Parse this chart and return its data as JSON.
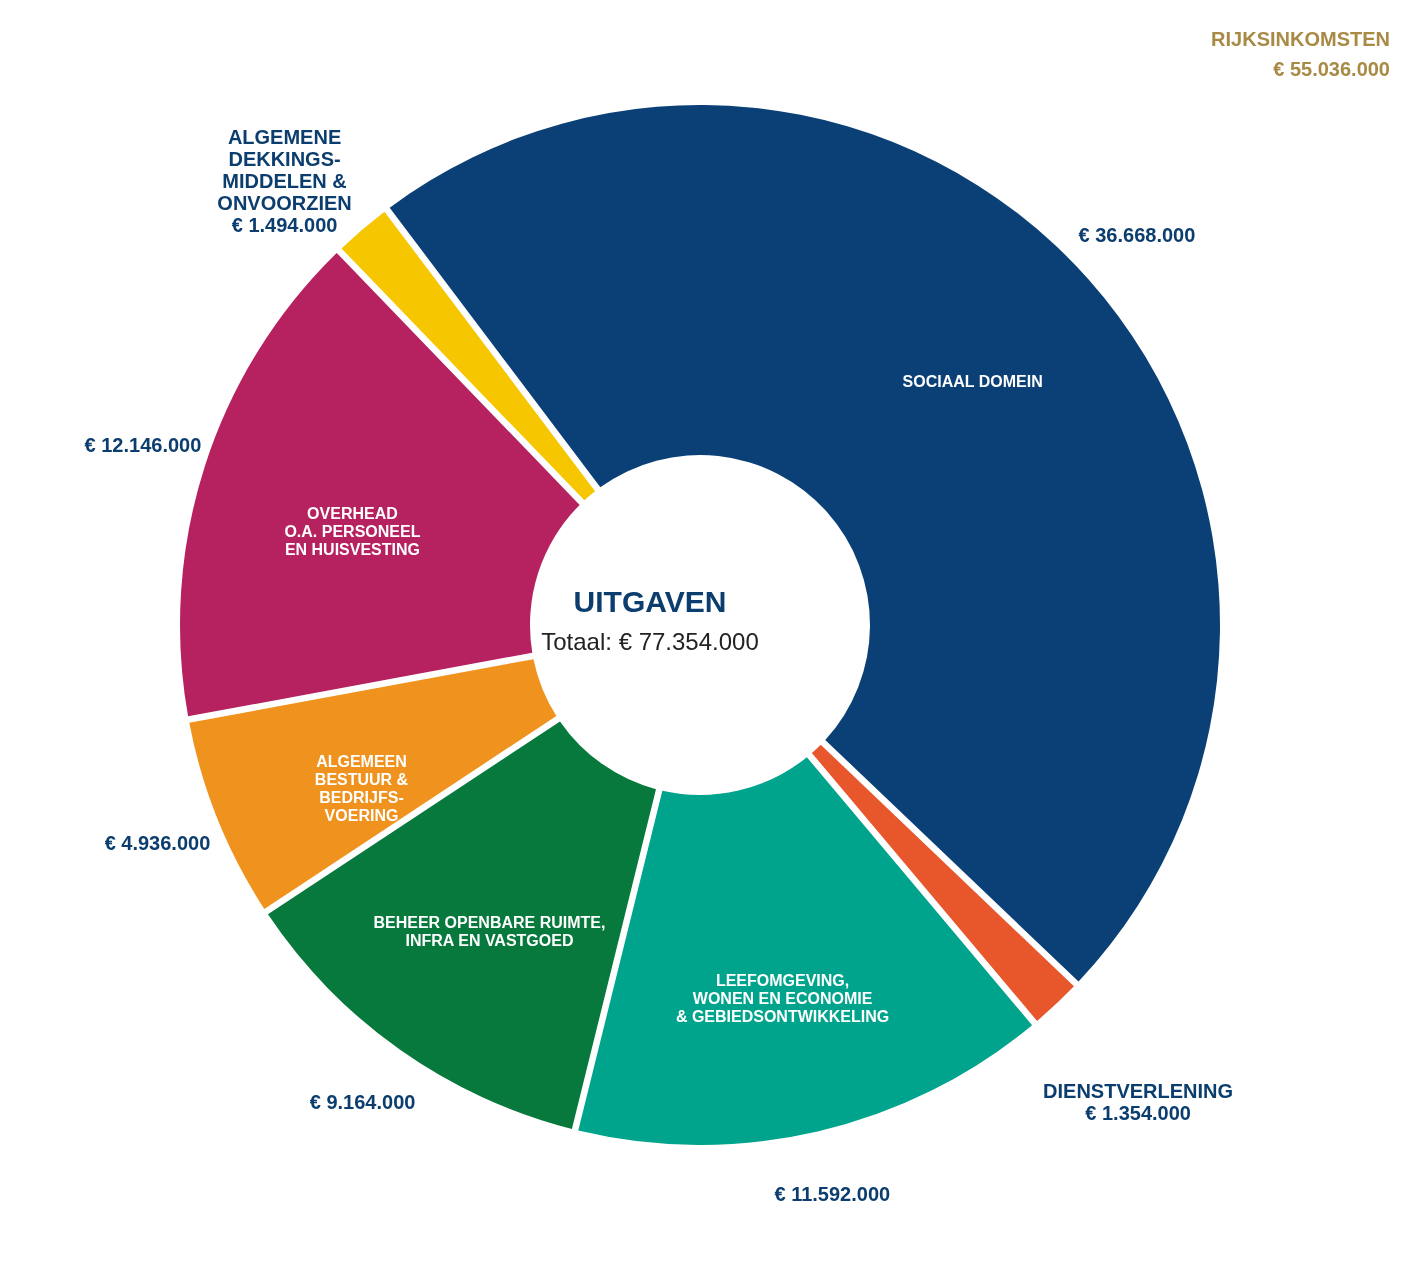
{
  "chart_data": {
    "type": "donut",
    "title": "UITGAVEN",
    "subtitle": "Totaal:  € 77.354.000",
    "categories": [
      "SOCIAAL DOMEIN",
      "DIENSTVERLENING",
      "LEEFOMGEVING,\nWONEN EN ECONOMIE\n& GEBIEDSONTWIKKELING",
      "BEHEER OPENBARE RUIMTE,\nINFRA EN VASTGOED",
      "ALGEMEEN\nBESTUUR &\nBEDRIJFS-\nVOERING",
      "OVERHEAD\nO.A. PERSONEEL\nEN HUISVESTING",
      "ALGEMENE\nDEKKINGS-\nMIDDELEN &\nONVOORZIEN"
    ],
    "values": [
      36668000,
      1354000,
      11592000,
      9164000,
      4936000,
      12146000,
      1494000
    ],
    "value_labels": [
      "€ 36.668.000",
      "€ 1.354.000",
      "€ 11.592.000",
      "€ 9.164.000",
      "€ 4.936.000",
      "€ 12.146.000",
      "€ 1.494.000"
    ],
    "colors": [
      "#0b4077",
      "#e8562c",
      "#00a48c",
      "#08793d",
      "#f0921e",
      "#b6215f",
      "#f6c700"
    ],
    "annotations": [
      "RIJKSINKOMSTEN",
      "€ 55.036.000"
    ]
  }
}
